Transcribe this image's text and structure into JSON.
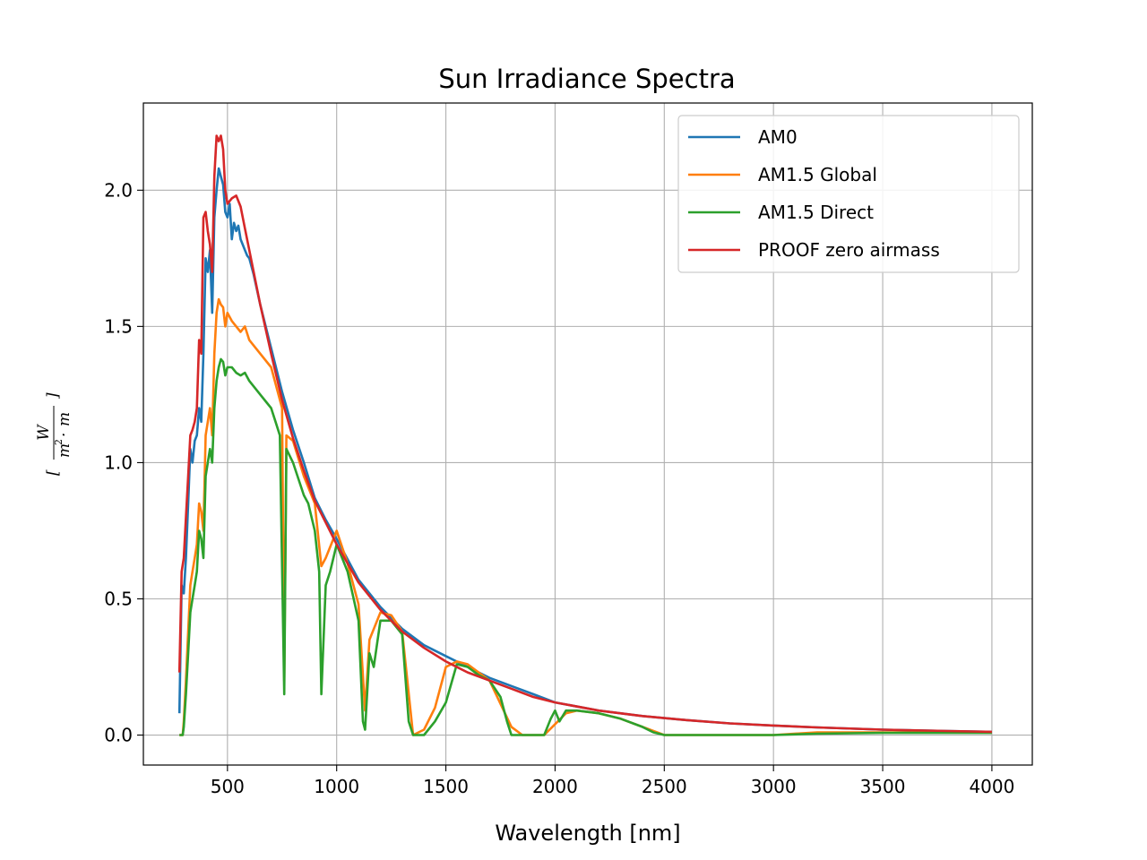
{
  "chart_data": {
    "type": "line",
    "title": "Sun Irradiance Spectra",
    "xlabel": "Wavelength [nm]",
    "ylabel": "[W / (m²·m)]",
    "ylabel_parts": {
      "numerator": "W",
      "denominator_base": "m",
      "denominator_exp": "2",
      "denominator_op": "·",
      "denominator_tail": "m",
      "bracket_left": "[",
      "bracket_right": "]"
    },
    "xlim": [
      115,
      4185
    ],
    "ylim": [
      -0.11,
      2.32
    ],
    "xticks": [
      500,
      1000,
      1500,
      2000,
      2500,
      3000,
      3500,
      4000
    ],
    "xtick_labels": [
      "500",
      "1000",
      "1500",
      "2000",
      "2500",
      "3000",
      "3500",
      "4000"
    ],
    "yticks": [
      0.0,
      0.5,
      1.0,
      1.5,
      2.0
    ],
    "ytick_labels": [
      "0.0",
      "0.5",
      "1.0",
      "1.5",
      "2.0"
    ],
    "grid": true,
    "legend_position": "top-right",
    "series": [
      {
        "name": "AM0",
        "color": "#1f77b4",
        "x": [
          280,
          290,
          300,
          310,
          320,
          330,
          340,
          350,
          360,
          370,
          380,
          390,
          400,
          410,
          420,
          430,
          440,
          450,
          460,
          470,
          480,
          490,
          500,
          510,
          520,
          530,
          540,
          550,
          560,
          570,
          580,
          590,
          600,
          620,
          650,
          700,
          750,
          800,
          850,
          900,
          950,
          1000,
          1100,
          1200,
          1300,
          1400,
          1500,
          1600,
          1700,
          1800,
          1900,
          2000,
          2200,
          2400,
          2600,
          2800,
          3000,
          3200,
          3500,
          3800,
          4000
        ],
        "y": [
          0.08,
          0.55,
          0.52,
          0.65,
          0.85,
          1.05,
          1.0,
          1.08,
          1.1,
          1.2,
          1.15,
          1.4,
          1.75,
          1.7,
          1.78,
          1.55,
          1.9,
          2.0,
          2.08,
          2.05,
          2.02,
          1.92,
          1.9,
          1.95,
          1.82,
          1.88,
          1.85,
          1.87,
          1.82,
          1.8,
          1.78,
          1.76,
          1.75,
          1.69,
          1.58,
          1.42,
          1.26,
          1.12,
          1.0,
          0.87,
          0.79,
          0.72,
          0.57,
          0.47,
          0.39,
          0.33,
          0.29,
          0.25,
          0.21,
          0.18,
          0.15,
          0.12,
          0.09,
          0.07,
          0.055,
          0.043,
          0.035,
          0.028,
          0.02,
          0.015,
          0.012
        ]
      },
      {
        "name": "AM1.5 Global",
        "color": "#ff7f0e",
        "x": [
          280,
          295,
          300,
          310,
          320,
          330,
          340,
          350,
          360,
          370,
          380,
          390,
          400,
          410,
          420,
          430,
          440,
          450,
          460,
          470,
          480,
          490,
          500,
          520,
          540,
          560,
          580,
          600,
          650,
          700,
          750,
          760,
          770,
          800,
          850,
          900,
          930,
          950,
          1000,
          1050,
          1100,
          1130,
          1150,
          1200,
          1250,
          1300,
          1350,
          1400,
          1450,
          1500,
          1550,
          1600,
          1700,
          1800,
          1850,
          1900,
          1950,
          2000,
          2050,
          2100,
          2200,
          2300,
          2400,
          2500,
          2600,
          2800,
          3000,
          3200,
          3500,
          3800,
          4000
        ],
        "y": [
          0.0,
          0.0,
          0.05,
          0.2,
          0.38,
          0.55,
          0.6,
          0.65,
          0.7,
          0.85,
          0.82,
          0.75,
          1.1,
          1.15,
          1.2,
          1.1,
          1.4,
          1.55,
          1.6,
          1.58,
          1.57,
          1.5,
          1.55,
          1.52,
          1.5,
          1.48,
          1.5,
          1.45,
          1.4,
          1.35,
          1.2,
          0.2,
          1.1,
          1.08,
          0.95,
          0.85,
          0.62,
          0.65,
          0.75,
          0.63,
          0.48,
          0.09,
          0.35,
          0.45,
          0.44,
          0.38,
          0.0,
          0.02,
          0.1,
          0.25,
          0.27,
          0.26,
          0.2,
          0.03,
          0.0,
          0.0,
          0.0,
          0.04,
          0.08,
          0.09,
          0.08,
          0.06,
          0.03,
          0.0,
          0.0,
          0.0,
          0.0,
          0.01,
          0.01,
          0.01,
          0.01
        ]
      },
      {
        "name": "AM1.5 Direct",
        "color": "#2ca02c",
        "x": [
          280,
          295,
          300,
          310,
          320,
          330,
          340,
          350,
          360,
          370,
          380,
          390,
          400,
          410,
          420,
          430,
          440,
          450,
          460,
          470,
          480,
          490,
          500,
          520,
          540,
          560,
          580,
          600,
          620,
          650,
          680,
          700,
          720,
          740,
          760,
          770,
          800,
          850,
          870,
          900,
          920,
          930,
          950,
          970,
          1000,
          1050,
          1100,
          1120,
          1130,
          1150,
          1170,
          1200,
          1250,
          1300,
          1330,
          1350,
          1400,
          1450,
          1500,
          1550,
          1600,
          1650,
          1700,
          1750,
          1780,
          1800,
          1850,
          1900,
          1950,
          1980,
          2000,
          2020,
          2050,
          2100,
          2200,
          2300,
          2400,
          2450,
          2500,
          2600,
          2800,
          3000,
          3200,
          3500,
          3800,
          4000
        ],
        "y": [
          0.0,
          0.0,
          0.03,
          0.15,
          0.3,
          0.45,
          0.5,
          0.55,
          0.6,
          0.75,
          0.72,
          0.65,
          0.95,
          1.0,
          1.05,
          1.0,
          1.2,
          1.3,
          1.35,
          1.38,
          1.37,
          1.32,
          1.35,
          1.35,
          1.33,
          1.32,
          1.33,
          1.3,
          1.28,
          1.25,
          1.22,
          1.2,
          1.15,
          1.1,
          0.15,
          1.05,
          1.0,
          0.88,
          0.85,
          0.75,
          0.6,
          0.15,
          0.55,
          0.6,
          0.7,
          0.6,
          0.42,
          0.05,
          0.02,
          0.3,
          0.25,
          0.42,
          0.42,
          0.37,
          0.05,
          0.0,
          0.0,
          0.05,
          0.12,
          0.26,
          0.25,
          0.22,
          0.2,
          0.14,
          0.05,
          0.0,
          0.0,
          0.0,
          0.0,
          0.06,
          0.09,
          0.05,
          0.09,
          0.09,
          0.08,
          0.06,
          0.03,
          0.01,
          0.0,
          0.0,
          0.0,
          0.0,
          0.005,
          0.008,
          0.008,
          0.008
        ]
      },
      {
        "name": "PROOF zero airmass",
        "color": "#d62728",
        "x": [
          280,
          290,
          300,
          310,
          320,
          330,
          340,
          350,
          360,
          370,
          380,
          390,
          400,
          410,
          420,
          430,
          440,
          450,
          460,
          470,
          480,
          490,
          500,
          520,
          540,
          560,
          580,
          600,
          650,
          700,
          750,
          800,
          850,
          900,
          950,
          1000,
          1100,
          1200,
          1300,
          1400,
          1500,
          1600,
          1700,
          1800,
          1900,
          2000,
          2200,
          2400,
          2600,
          2800,
          3000,
          3200,
          3500,
          3800,
          4000
        ],
        "y": [
          0.23,
          0.6,
          0.65,
          0.8,
          0.95,
          1.1,
          1.12,
          1.15,
          1.2,
          1.45,
          1.4,
          1.9,
          1.92,
          1.85,
          1.8,
          1.7,
          2.05,
          2.2,
          2.18,
          2.2,
          2.15,
          2.0,
          1.95,
          1.97,
          1.98,
          1.94,
          1.86,
          1.78,
          1.58,
          1.4,
          1.23,
          1.09,
          0.97,
          0.86,
          0.78,
          0.7,
          0.56,
          0.46,
          0.38,
          0.32,
          0.27,
          0.23,
          0.2,
          0.17,
          0.14,
          0.12,
          0.09,
          0.07,
          0.055,
          0.043,
          0.035,
          0.028,
          0.02,
          0.015,
          0.012
        ]
      }
    ]
  }
}
